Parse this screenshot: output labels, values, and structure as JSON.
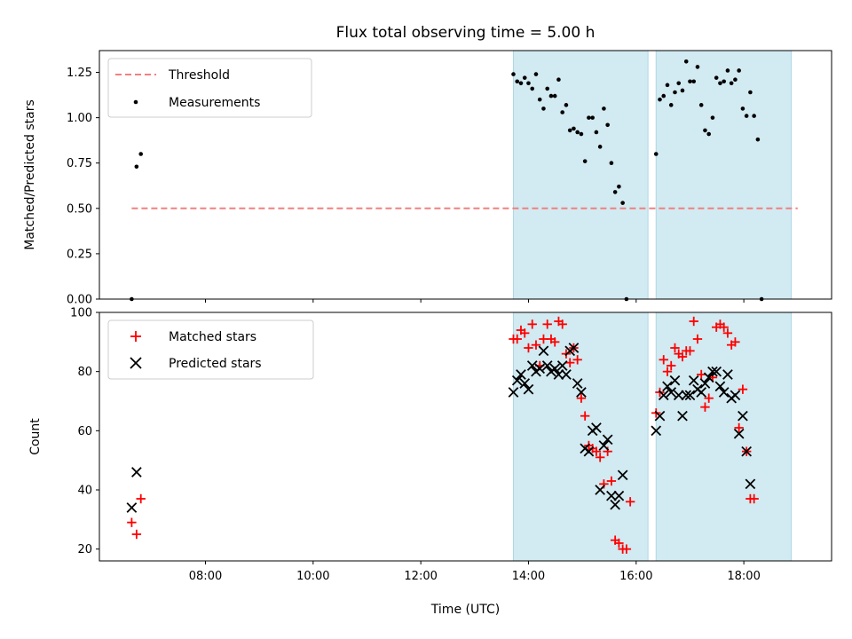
{
  "chart_data": [
    {
      "type": "scatter",
      "title": "Flux total observing time = 5.00 h",
      "xlabel": "",
      "ylabel": "Matched/Predicted stars",
      "ylim": [
        0,
        1.37
      ],
      "yticks": [
        "0.00",
        "0.25",
        "0.50",
        "0.75",
        "1.00",
        "1.25"
      ],
      "xlim": [
        6.03,
        19.63
      ],
      "shaded_intervals": [
        [
          13.72,
          16.22
        ],
        [
          16.37,
          18.88
        ]
      ],
      "shade_color": "#add8e6",
      "threshold": {
        "name": "Threshold",
        "y": 0.5,
        "x": [
          6.63,
          19.0
        ],
        "color": "#f08080"
      },
      "legend": {
        "position": "top-left",
        "entries": [
          "Threshold",
          "Measurements"
        ]
      },
      "series": [
        {
          "name": "Measurements",
          "color": "#000000",
          "points": [
            [
              6.63,
              0.0
            ],
            [
              6.72,
              0.73
            ],
            [
              6.8,
              0.8
            ],
            [
              13.72,
              1.24
            ],
            [
              13.79,
              1.2
            ],
            [
              13.86,
              1.19
            ],
            [
              13.93,
              1.22
            ],
            [
              14.0,
              1.19
            ],
            [
              14.07,
              1.16
            ],
            [
              14.14,
              1.24
            ],
            [
              14.21,
              1.1
            ],
            [
              14.28,
              1.05
            ],
            [
              14.35,
              1.16
            ],
            [
              14.42,
              1.12
            ],
            [
              14.49,
              1.12
            ],
            [
              14.56,
              1.21
            ],
            [
              14.63,
              1.03
            ],
            [
              14.7,
              1.07
            ],
            [
              14.77,
              0.93
            ],
            [
              14.84,
              0.94
            ],
            [
              14.91,
              0.92
            ],
            [
              14.98,
              0.91
            ],
            [
              15.05,
              0.76
            ],
            [
              15.12,
              1.0
            ],
            [
              15.19,
              1.0
            ],
            [
              15.26,
              0.92
            ],
            [
              15.33,
              0.84
            ],
            [
              15.4,
              1.05
            ],
            [
              15.47,
              0.96
            ],
            [
              15.54,
              0.75
            ],
            [
              15.61,
              0.59
            ],
            [
              15.68,
              0.62
            ],
            [
              15.75,
              0.53
            ],
            [
              15.82,
              0.0
            ],
            [
              16.37,
              0.8
            ],
            [
              16.44,
              1.1
            ],
            [
              16.51,
              1.12
            ],
            [
              16.58,
              1.18
            ],
            [
              16.65,
              1.07
            ],
            [
              16.72,
              1.14
            ],
            [
              16.79,
              1.19
            ],
            [
              16.86,
              1.15
            ],
            [
              16.93,
              1.31
            ],
            [
              17.0,
              1.2
            ],
            [
              17.07,
              1.2
            ],
            [
              17.14,
              1.28
            ],
            [
              17.21,
              1.07
            ],
            [
              17.28,
              0.93
            ],
            [
              17.35,
              0.91
            ],
            [
              17.42,
              1.0
            ],
            [
              17.49,
              1.22
            ],
            [
              17.56,
              1.19
            ],
            [
              17.63,
              1.2
            ],
            [
              17.7,
              1.26
            ],
            [
              17.77,
              1.19
            ],
            [
              17.84,
              1.21
            ],
            [
              17.91,
              1.26
            ],
            [
              17.98,
              1.05
            ],
            [
              18.05,
              1.01
            ],
            [
              18.12,
              1.14
            ],
            [
              18.19,
              1.01
            ],
            [
              18.26,
              0.88
            ],
            [
              18.33,
              0.0
            ]
          ]
        }
      ]
    },
    {
      "type": "scatter",
      "title": "",
      "xlabel": "Time (UTC)",
      "ylabel": "Count",
      "ylim": [
        16,
        100
      ],
      "yticks": [
        "20",
        "40",
        "60",
        "80",
        "100"
      ],
      "xlim": [
        6.03,
        19.63
      ],
      "xticks": [
        {
          "value": 8,
          "label": "08:00"
        },
        {
          "value": 10,
          "label": "10:00"
        },
        {
          "value": 12,
          "label": "12:00"
        },
        {
          "value": 14,
          "label": "14:00"
        },
        {
          "value": 16,
          "label": "16:00"
        },
        {
          "value": 18,
          "label": "18:00"
        }
      ],
      "shaded_intervals": [
        [
          13.72,
          16.22
        ],
        [
          16.37,
          18.88
        ]
      ],
      "shade_color": "#add8e6",
      "legend": {
        "position": "top-left",
        "entries": [
          "Matched stars",
          "Predicted stars"
        ]
      },
      "series": [
        {
          "name": "Matched stars",
          "color": "#ff0000",
          "marker": "+",
          "points": [
            [
              6.63,
              29
            ],
            [
              6.72,
              25
            ],
            [
              6.8,
              37
            ],
            [
              13.72,
              91
            ],
            [
              13.79,
              91
            ],
            [
              13.86,
              94
            ],
            [
              13.93,
              93
            ],
            [
              14.0,
              88
            ],
            [
              14.07,
              96
            ],
            [
              14.14,
              89
            ],
            [
              14.21,
              82
            ],
            [
              14.28,
              91
            ],
            [
              14.35,
              96
            ],
            [
              14.42,
              91
            ],
            [
              14.49,
              90
            ],
            [
              14.56,
              97
            ],
            [
              14.63,
              96
            ],
            [
              14.7,
              86
            ],
            [
              14.77,
              83
            ],
            [
              14.84,
              88
            ],
            [
              14.91,
              84
            ],
            [
              14.98,
              71
            ],
            [
              15.05,
              65
            ],
            [
              15.12,
              55
            ],
            [
              15.19,
              54
            ],
            [
              15.26,
              53
            ],
            [
              15.33,
              51
            ],
            [
              15.4,
              42
            ],
            [
              15.47,
              53
            ],
            [
              15.54,
              43
            ],
            [
              15.61,
              23
            ],
            [
              15.68,
              22
            ],
            [
              15.75,
              20
            ],
            [
              15.82,
              20
            ],
            [
              15.89,
              36
            ],
            [
              16.37,
              66
            ],
            [
              16.44,
              73
            ],
            [
              16.51,
              84
            ],
            [
              16.58,
              80
            ],
            [
              16.65,
              82
            ],
            [
              16.72,
              88
            ],
            [
              16.79,
              86
            ],
            [
              16.86,
              85
            ],
            [
              16.93,
              87
            ],
            [
              17.0,
              87
            ],
            [
              17.07,
              97
            ],
            [
              17.14,
              91
            ],
            [
              17.21,
              79
            ],
            [
              17.28,
              68
            ],
            [
              17.35,
              71
            ],
            [
              17.42,
              78
            ],
            [
              17.49,
              95
            ],
            [
              17.56,
              96
            ],
            [
              17.63,
              95
            ],
            [
              17.7,
              93
            ],
            [
              17.77,
              89
            ],
            [
              17.84,
              90
            ],
            [
              17.91,
              61
            ],
            [
              17.98,
              74
            ],
            [
              18.05,
              53
            ],
            [
              18.12,
              37
            ],
            [
              18.19,
              37
            ]
          ]
        },
        {
          "name": "Predicted stars",
          "color": "#000000",
          "marker": "x",
          "points": [
            [
              6.63,
              34
            ],
            [
              6.72,
              46
            ],
            [
              13.72,
              73
            ],
            [
              13.79,
              77
            ],
            [
              13.86,
              79
            ],
            [
              13.93,
              76
            ],
            [
              14.0,
              74
            ],
            [
              14.07,
              82
            ],
            [
              14.14,
              80
            ],
            [
              14.21,
              81
            ],
            [
              14.28,
              87
            ],
            [
              14.35,
              82
            ],
            [
              14.42,
              80
            ],
            [
              14.49,
              81
            ],
            [
              14.56,
              79
            ],
            [
              14.63,
              82
            ],
            [
              14.7,
              79
            ],
            [
              14.77,
              87
            ],
            [
              14.84,
              88
            ],
            [
              14.91,
              76
            ],
            [
              14.98,
              73
            ],
            [
              15.05,
              54
            ],
            [
              15.12,
              53
            ],
            [
              15.19,
              60
            ],
            [
              15.26,
              61
            ],
            [
              15.33,
              40
            ],
            [
              15.4,
              55
            ],
            [
              15.47,
              57
            ],
            [
              15.54,
              38
            ],
            [
              15.61,
              35
            ],
            [
              15.68,
              38
            ],
            [
              15.75,
              45
            ],
            [
              16.37,
              60
            ],
            [
              16.44,
              65
            ],
            [
              16.51,
              72
            ],
            [
              16.58,
              75
            ],
            [
              16.65,
              73
            ],
            [
              16.72,
              77
            ],
            [
              16.79,
              72
            ],
            [
              16.86,
              65
            ],
            [
              16.93,
              72
            ],
            [
              17.0,
              72
            ],
            [
              17.07,
              77
            ],
            [
              17.14,
              74
            ],
            [
              17.21,
              73
            ],
            [
              17.28,
              76
            ],
            [
              17.35,
              78
            ],
            [
              17.42,
              80
            ],
            [
              17.49,
              80
            ],
            [
              17.56,
              75
            ],
            [
              17.63,
              73
            ],
            [
              17.7,
              79
            ],
            [
              17.77,
              71
            ],
            [
              17.84,
              72
            ],
            [
              17.91,
              59
            ],
            [
              17.98,
              65
            ],
            [
              18.05,
              53
            ],
            [
              18.12,
              42
            ]
          ]
        }
      ]
    }
  ]
}
